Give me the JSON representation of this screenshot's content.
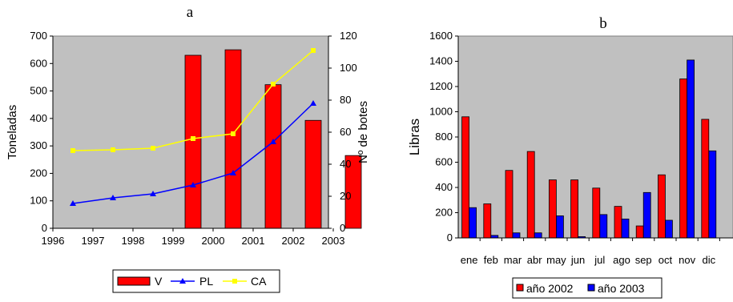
{
  "chart_data": [
    {
      "type": "bar+line",
      "title": "a",
      "ylabel": "Toneladas",
      "y2label": "Nº de botes",
      "ylim": [
        0,
        700
      ],
      "y2lim": [
        0,
        120
      ],
      "yticks": [
        "0",
        "100",
        "200",
        "300",
        "400",
        "500",
        "600",
        "700"
      ],
      "y2ticks": [
        "0",
        "20",
        "40",
        "60",
        "80",
        "100",
        "120"
      ],
      "xticks": [
        "1996",
        "1997",
        "1998",
        "1999",
        "2000",
        "2001",
        "2002",
        "2003"
      ],
      "bar_series": {
        "name": "V",
        "color": "#ff0000",
        "points": [
          {
            "x": 1999.5,
            "y": 630
          },
          {
            "x": 2000.5,
            "y": 650
          },
          {
            "x": 2001.5,
            "y": 523
          },
          {
            "x": 2002.5,
            "y": 393
          },
          {
            "x": 2003.5,
            "y": 265
          }
        ]
      },
      "line_series": [
        {
          "name": "PL",
          "color": "#0000ff",
          "marker": "triangle",
          "points": [
            {
              "x": 1996.5,
              "y": 15.5
            },
            {
              "x": 1997.5,
              "y": 19
            },
            {
              "x": 1998.5,
              "y": 21.5
            },
            {
              "x": 1999.5,
              "y": 27
            },
            {
              "x": 2000.5,
              "y": 34.5
            },
            {
              "x": 2001.5,
              "y": 54
            },
            {
              "x": 2002.5,
              "y": 78
            }
          ]
        },
        {
          "name": "CA",
          "color": "#ffff00",
          "marker": "square",
          "points": [
            {
              "x": 1996.5,
              "y": 48.5
            },
            {
              "x": 1997.5,
              "y": 49
            },
            {
              "x": 1998.5,
              "y": 50
            },
            {
              "x": 1999.5,
              "y": 56
            },
            {
              "x": 2000.5,
              "y": 59
            },
            {
              "x": 2001.5,
              "y": 90
            },
            {
              "x": 2002.5,
              "y": 111
            }
          ]
        }
      ],
      "legend": {
        "position": "bottom",
        "items": [
          "V",
          "PL",
          "CA"
        ]
      },
      "plot_bg": "#c0c0c0"
    },
    {
      "type": "bar",
      "title": "b",
      "ylabel": "Libras",
      "ylim": [
        0,
        1600
      ],
      "yticks": [
        "0",
        "200",
        "400",
        "600",
        "800",
        "1000",
        "1200",
        "1400",
        "1600"
      ],
      "categories": [
        "ene",
        "feb",
        "mar",
        "abr",
        "may",
        "jun",
        "jul",
        "ago",
        "sep",
        "oct",
        "nov",
        "dic"
      ],
      "series": [
        {
          "name": "año 2002",
          "color": "#ff0000",
          "values": [
            960,
            270,
            535,
            685,
            460,
            460,
            395,
            250,
            95,
            500,
            1260,
            940
          ]
        },
        {
          "name": "año 2003",
          "color": "#0000ff",
          "values": [
            240,
            20,
            40,
            40,
            175,
            10,
            185,
            150,
            360,
            140,
            1410,
            690
          ]
        }
      ],
      "legend": {
        "position": "bottom",
        "items": [
          "año 2002",
          "año 2003"
        ]
      },
      "plot_bg": "#c0c0c0"
    }
  ]
}
